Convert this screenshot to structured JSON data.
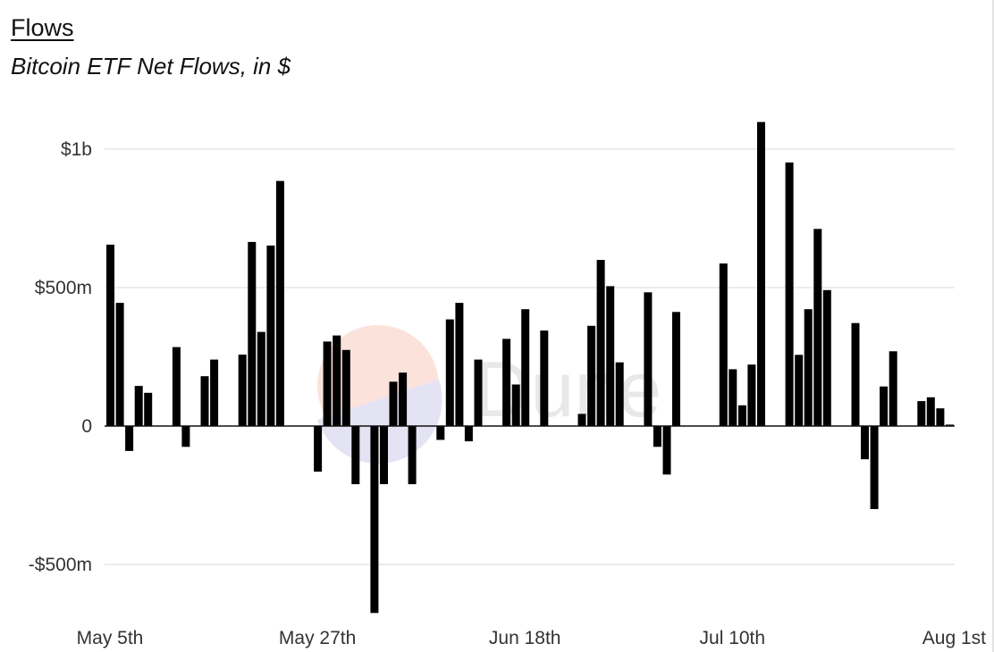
{
  "header": {
    "title": "Flows",
    "subtitle": "Bitcoin ETF Net Flows, in $"
  },
  "watermark": {
    "text": "Dune"
  },
  "colors": {
    "bar": "#000000",
    "grid": "#e6e6e6",
    "axis": "#333333"
  },
  "chart_data": {
    "type": "bar",
    "title": "Flows",
    "subtitle": "Bitcoin ETF Net Flows, in $",
    "xlabel": "",
    "ylabel": "",
    "grid": true,
    "ylim": [
      -680,
      1100
    ],
    "y_ticks": [
      {
        "value": 1000,
        "label": "$1b"
      },
      {
        "value": 500,
        "label": "$500m"
      },
      {
        "value": 0,
        "label": "0"
      },
      {
        "value": -500,
        "label": "-$500m"
      }
    ],
    "x_tick_labels": [
      {
        "label": "May 5th",
        "index": 0
      },
      {
        "label": "May 27th",
        "index": 22
      },
      {
        "label": "Jun 18th",
        "index": 44
      },
      {
        "label": "Jul 10th",
        "index": 66
      },
      {
        "label": "Aug 1st",
        "index": 88
      }
    ],
    "x_start": "May 5th",
    "x_end": "Aug 1st",
    "value_unit": "$ millions",
    "values": [
      655,
      445,
      -90,
      145,
      120,
      null,
      null,
      285,
      -75,
      null,
      180,
      240,
      null,
      null,
      258,
      665,
      340,
      652,
      885,
      null,
      null,
      null,
      -165,
      305,
      327,
      275,
      -210,
      null,
      -675,
      -210,
      160,
      193,
      -210,
      null,
      null,
      -50,
      385,
      445,
      -55,
      240,
      null,
      null,
      315,
      150,
      422,
      null,
      345,
      null,
      null,
      null,
      44,
      362,
      600,
      505,
      230,
      null,
      null,
      483,
      -75,
      -175,
      412,
      null,
      null,
      null,
      null,
      587,
      205,
      75,
      222,
      1098,
      null,
      null,
      952,
      257,
      422,
      712,
      491,
      null,
      null,
      372,
      -120,
      -300,
      143,
      270,
      null,
      null,
      90,
      104,
      64,
      5
    ]
  }
}
